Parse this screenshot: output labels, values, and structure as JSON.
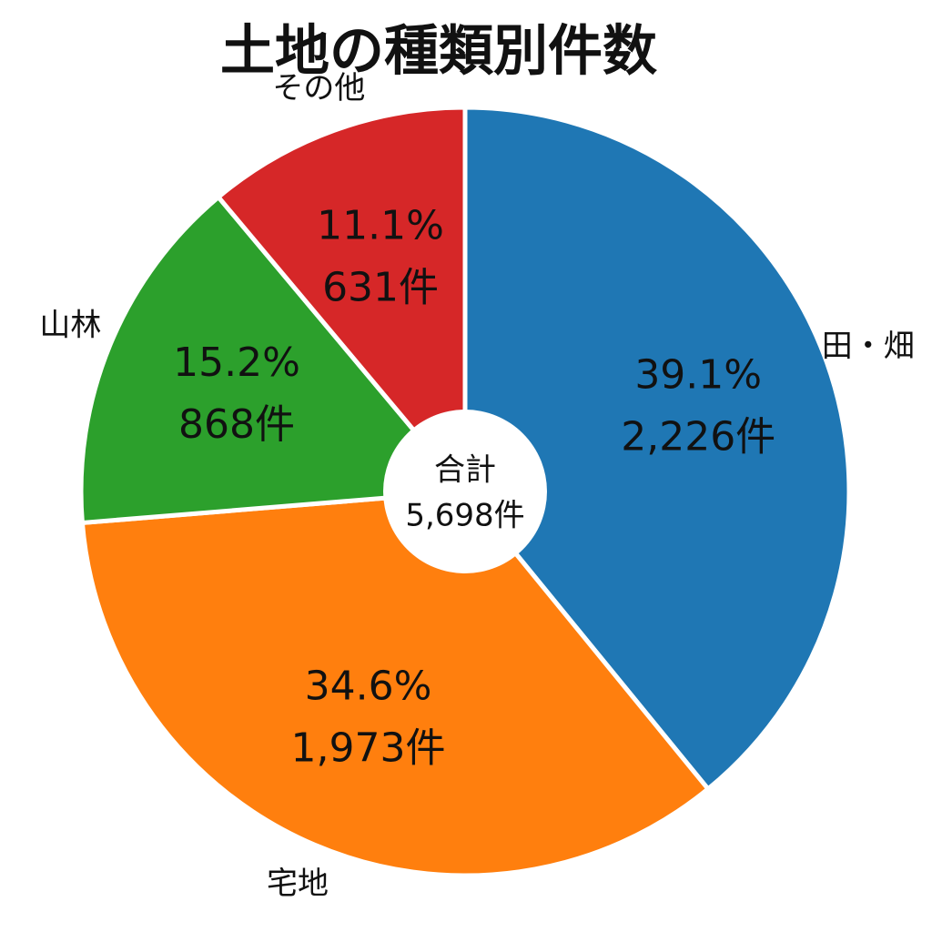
{
  "chart_data": {
    "type": "pie",
    "title": "土地の種類別件数",
    "categories": [
      "田・畑",
      "宅地",
      "山林",
      "その他"
    ],
    "values": [
      39.1,
      34.6,
      15.2,
      11.1
    ],
    "value_labels": [
      "39.1%",
      "34.6%",
      "15.2%",
      "11.1%"
    ],
    "counts": [
      2226,
      1973,
      868,
      631
    ],
    "count_labels": [
      "2,226件",
      "1,973件",
      "868件",
      "631件"
    ],
    "colors": [
      "#1f77b4",
      "#ff7f0e",
      "#2ca02c",
      "#d62728"
    ],
    "center_label": "合計",
    "total": 5698,
    "total_label": "5,698件"
  }
}
